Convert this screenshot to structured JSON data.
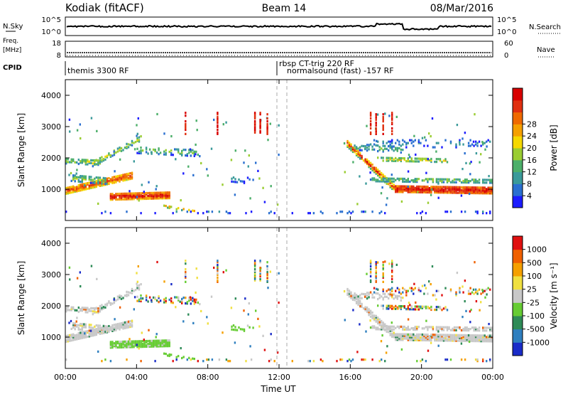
{
  "header": {
    "title_left": "Kodiak (fitACF)",
    "title_center": "Beam 14",
    "title_right": "08/Mar/2016"
  },
  "noise_panel": {
    "left_label": "N.Sky",
    "right_label": "N.Search",
    "ticks": [
      "10^5",
      "10^0"
    ]
  },
  "freq_panel": {
    "left_label_1": "Freq.",
    "left_label_2": "[MHz]",
    "left_ticks": [
      "18",
      "8"
    ],
    "right_label": "Nave",
    "right_ticks": [
      "60",
      "0"
    ]
  },
  "cpid": {
    "label": "CPID",
    "entries": [
      "themis 3300 RF",
      "rbsp CT-trig 220 RF",
      "normalsound (fast) -157 RF"
    ]
  },
  "chart_data": [
    {
      "type": "heatmap",
      "name": "Power",
      "ylabel": "Slant Range [km]",
      "xlabel": "Time UT",
      "ylim": [
        0,
        4500
      ],
      "yticks": [
        "1000",
        "2000",
        "3000",
        "4000"
      ],
      "xticks": [
        "00:00",
        "04:00",
        "08:00",
        "12:00",
        "16:00",
        "20:00",
        "00:00"
      ],
      "xlim_hours": [
        0,
        24
      ],
      "colorbar": {
        "label": "Power [dB]",
        "ticks": [
          "4",
          "8",
          "12",
          "16",
          "20",
          "24",
          "28"
        ],
        "range": [
          0,
          30
        ],
        "colors": [
          "#1c1cff",
          "#2a6fd0",
          "#3a9a9a",
          "#4caf6a",
          "#9acd32",
          "#f5d800",
          "#f5a000",
          "#ef6a00",
          "#e03010",
          "#d80000"
        ]
      }
    },
    {
      "type": "heatmap",
      "name": "Velocity",
      "ylabel": "Slant Range [km]",
      "xlabel": "Time UT",
      "ylim": [
        0,
        4500
      ],
      "yticks": [
        "1000",
        "2000",
        "3000",
        "4000"
      ],
      "xticks": [
        "00:00",
        "04:00",
        "08:00",
        "12:00",
        "16:00",
        "20:00",
        "00:00"
      ],
      "xlim_hours": [
        0,
        24
      ],
      "colorbar": {
        "label": "Velocity [m s⁻¹]",
        "ticks": [
          "1000",
          "500",
          "100",
          "25",
          "-25",
          "-100",
          "-500",
          "-1000"
        ],
        "colors": [
          "#1a2cc8",
          "#2f7fbf",
          "#2e8b57",
          "#66cc33",
          "#c8c8c8",
          "#f0e040",
          "#f5a000",
          "#f06000",
          "#e01010"
        ]
      }
    }
  ]
}
